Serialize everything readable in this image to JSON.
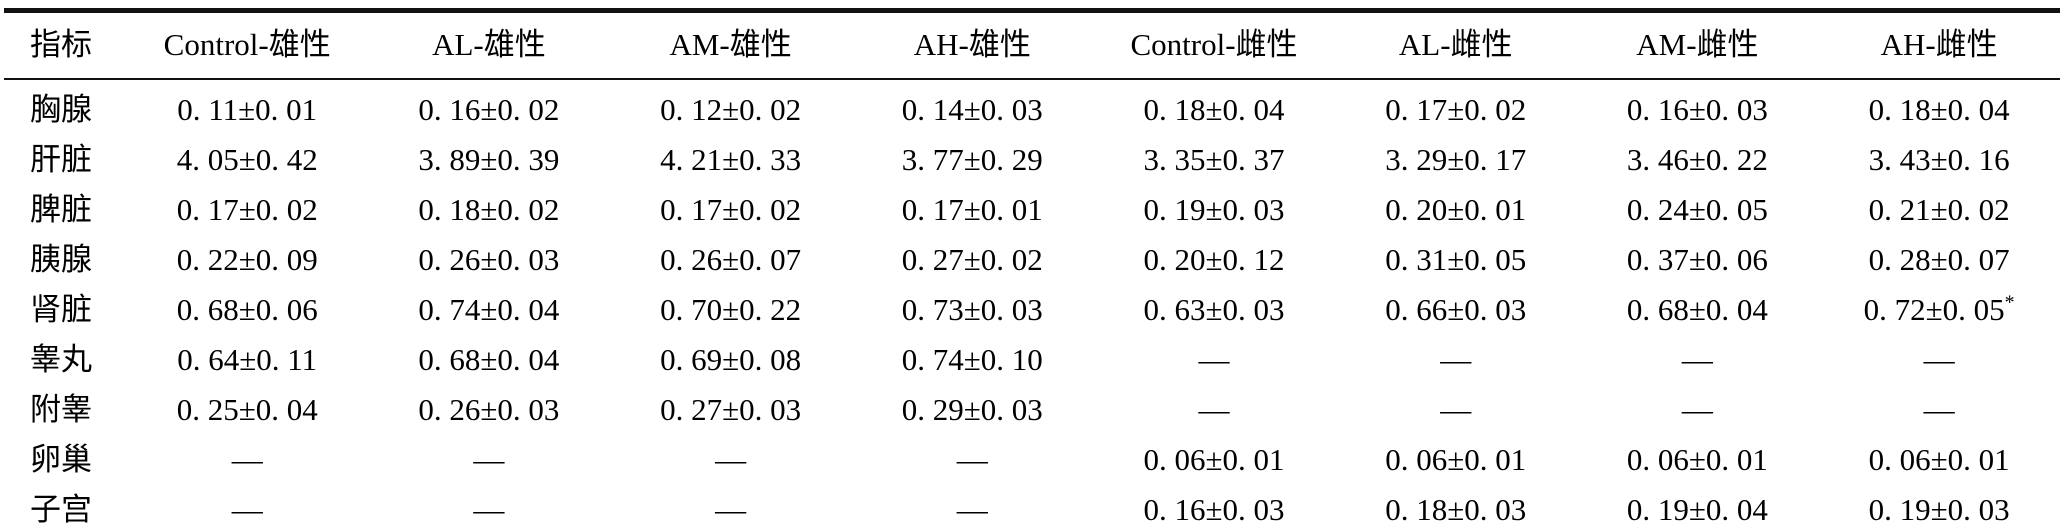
{
  "table": {
    "columns": [
      "指标",
      "Control-雄性",
      "AL-雄性",
      "AM-雄性",
      "AH-雄性",
      "Control-雌性",
      "AL-雌性",
      "AM-雌性",
      "AH-雌性"
    ],
    "rows": [
      {
        "label": "胸腺",
        "values": [
          "0. 11±0. 01",
          "0. 16±0. 02",
          "0. 12±0. 02",
          "0. 14±0. 03",
          "0. 18±0. 04",
          "0. 17±0. 02",
          "0. 16±0. 03",
          "0. 18±0. 04"
        ]
      },
      {
        "label": "肝脏",
        "values": [
          "4. 05±0. 42",
          "3. 89±0. 39",
          "4. 21±0. 33",
          "3. 77±0. 29",
          "3. 35±0. 37",
          "3. 29±0. 17",
          "3. 46±0. 22",
          "3. 43±0. 16"
        ]
      },
      {
        "label": "脾脏",
        "values": [
          "0. 17±0. 02",
          "0. 18±0. 02",
          "0. 17±0. 02",
          "0. 17±0. 01",
          "0. 19±0. 03",
          "0. 20±0. 01",
          "0. 24±0. 05",
          "0. 21±0. 02"
        ]
      },
      {
        "label": "胰腺",
        "values": [
          "0. 22±0. 09",
          "0. 26±0. 03",
          "0. 26±0. 07",
          "0. 27±0. 02",
          "0. 20±0. 12",
          "0. 31±0. 05",
          "0. 37±0. 06",
          "0. 28±0. 07"
        ]
      },
      {
        "label": "肾脏",
        "values": [
          "0. 68±0. 06",
          "0. 74±0. 04",
          "0. 70±0. 22",
          "0. 73±0. 03",
          "0. 63±0. 03",
          "0. 66±0. 03",
          "0. 68±0. 04",
          "0. 72±0. 05*"
        ]
      },
      {
        "label": "睾丸",
        "values": [
          "0. 64±0. 11",
          "0. 68±0. 04",
          "0. 69±0. 08",
          "0. 74±0. 10",
          "—",
          "—",
          "—",
          "—"
        ]
      },
      {
        "label": "附睾",
        "values": [
          "0. 25±0. 04",
          "0. 26±0. 03",
          "0. 27±0. 03",
          "0. 29±0. 03",
          "—",
          "—",
          "—",
          "—"
        ]
      },
      {
        "label": "卵巢",
        "values": [
          "—",
          "—",
          "—",
          "—",
          "0. 06±0. 01",
          "0. 06±0. 01",
          "0. 06±0. 01",
          "0. 06±0. 01"
        ]
      },
      {
        "label": "子宫",
        "values": [
          "—",
          "—",
          "—",
          "—",
          "0. 16±0. 03",
          "0. 18±0. 03",
          "0. 19±0. 04",
          "0. 19±0. 03"
        ]
      }
    ],
    "empty_marker": "—",
    "significance_marker": "*"
  },
  "colors": {
    "background": "#ffffff",
    "text": "#000000",
    "rule": "#111111"
  }
}
